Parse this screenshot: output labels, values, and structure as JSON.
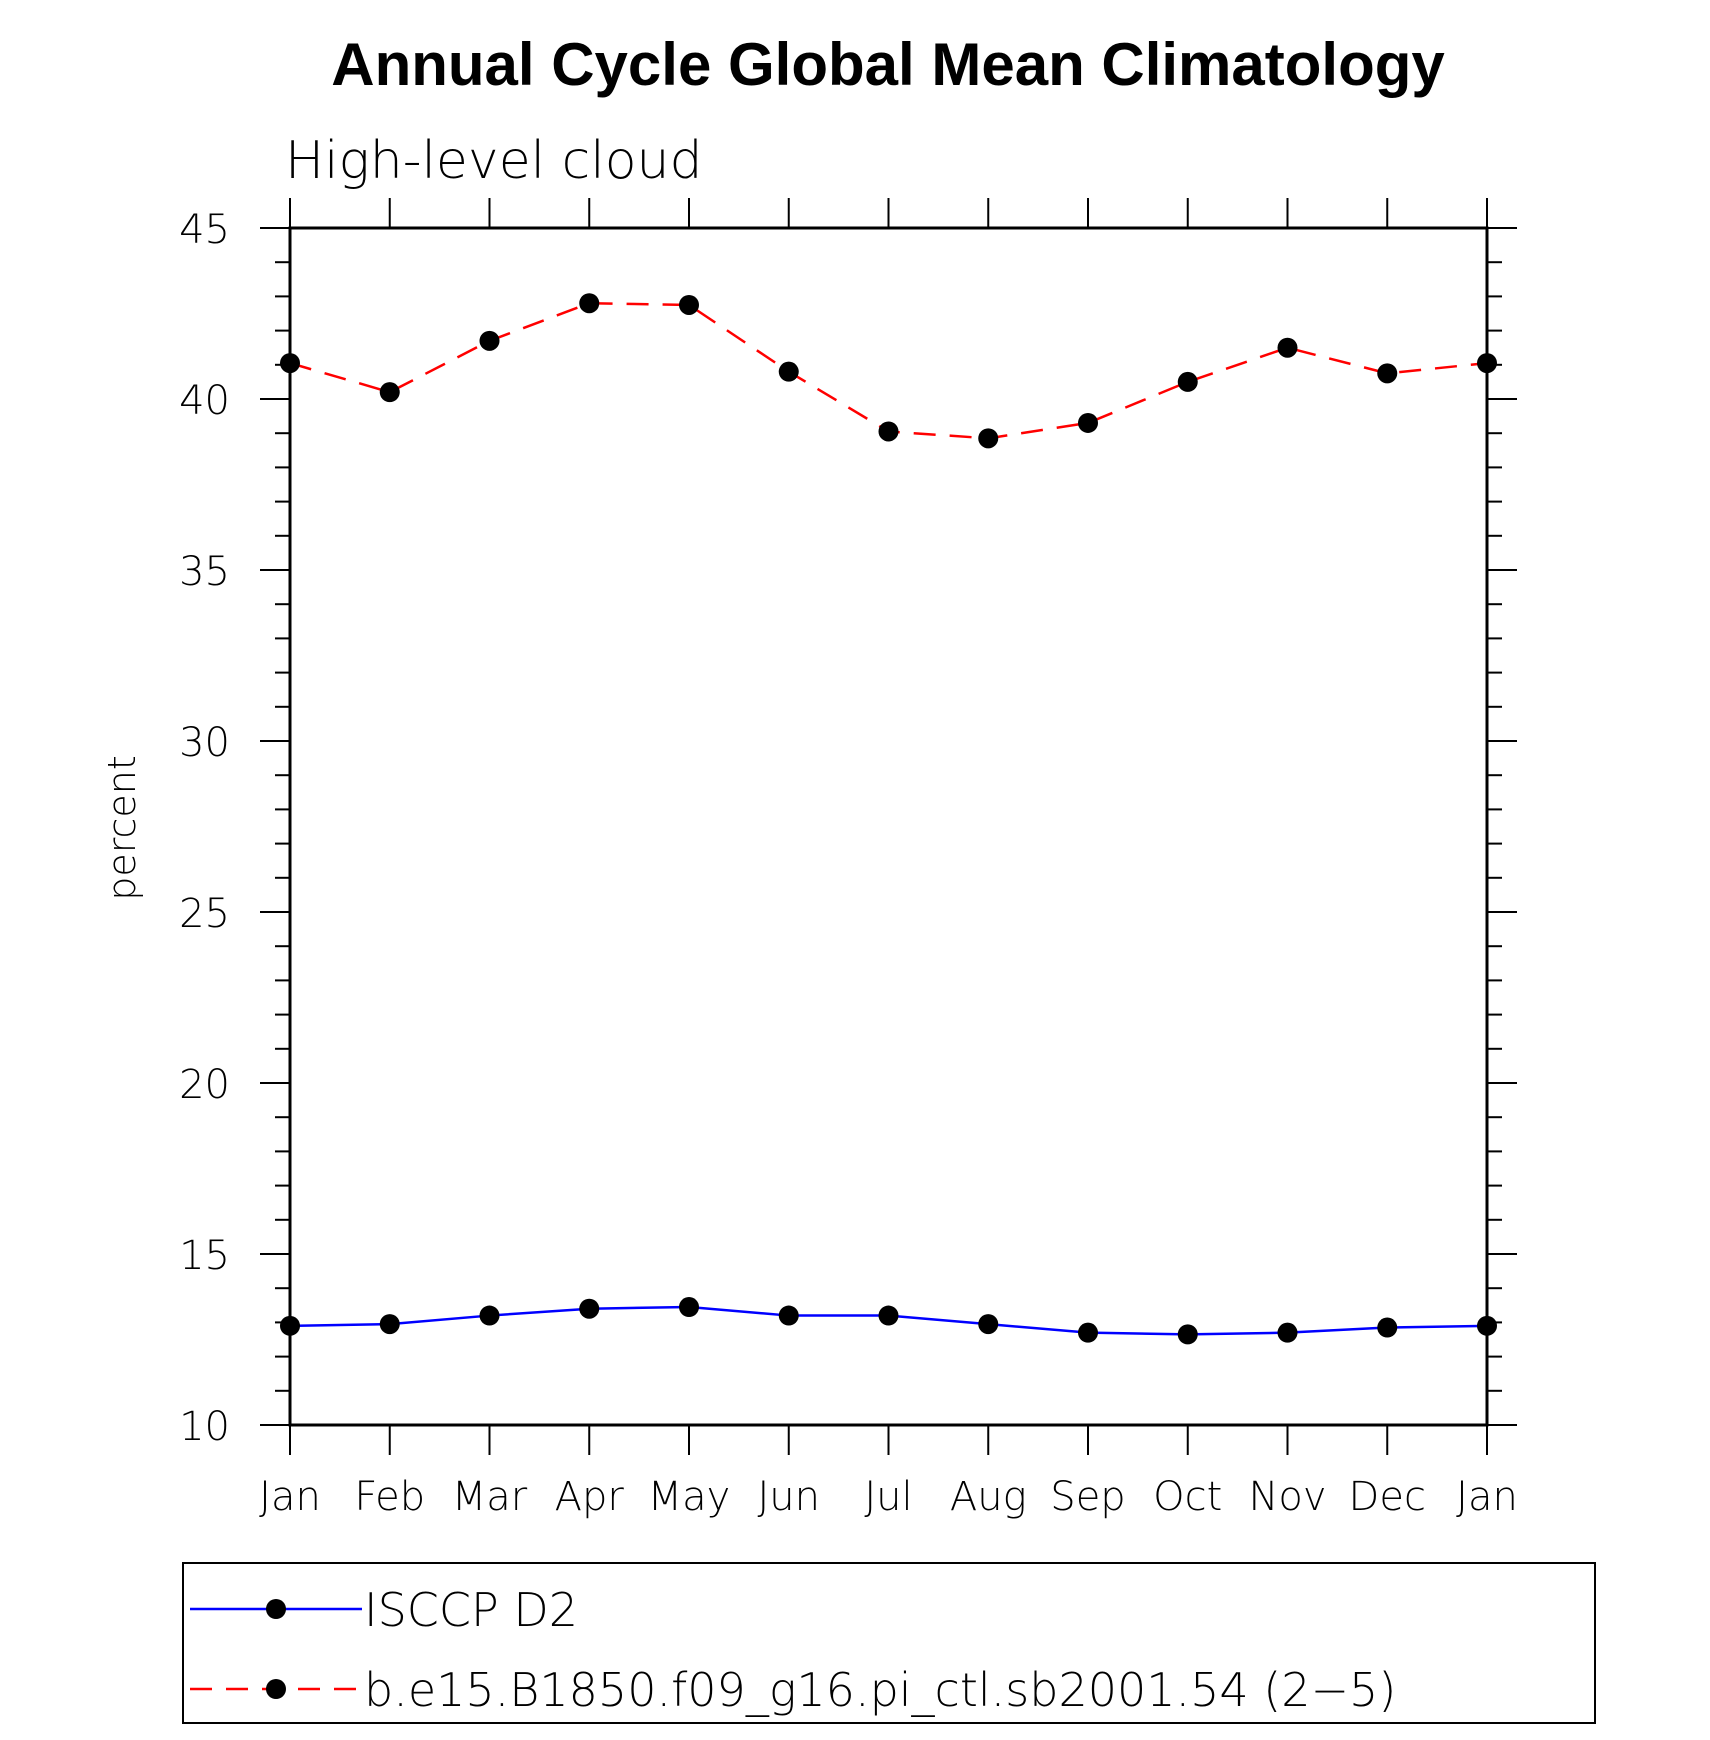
{
  "chart_data": {
    "type": "line",
    "title": "Annual Cycle Global Mean Climatology",
    "subtitle": "High-level cloud",
    "xlabel": "",
    "ylabel": "percent",
    "categories": [
      "Jan",
      "Feb",
      "Mar",
      "Apr",
      "May",
      "Jun",
      "Jul",
      "Aug",
      "Sep",
      "Oct",
      "Nov",
      "Dec",
      "Jan"
    ],
    "ylim": [
      10,
      45
    ],
    "yticks": [
      "10",
      "15",
      "20",
      "25",
      "30",
      "35",
      "40",
      "45"
    ],
    "grid": false,
    "legend_position": "bottom",
    "series": [
      {
        "name": "ISCCP D2",
        "color": "#0000ff",
        "dash": "solid",
        "marker": "filled-circle",
        "values": [
          12.9,
          12.95,
          13.2,
          13.4,
          13.45,
          13.2,
          13.2,
          12.95,
          12.7,
          12.65,
          12.7,
          12.85,
          12.9
        ]
      },
      {
        "name": "b.e15.B1850.f09_g16.pi_ctl.sb2001.54 (2−5)",
        "color": "#ff0000",
        "dash": "dashed",
        "marker": "filled-circle",
        "values": [
          41.05,
          40.2,
          41.7,
          42.8,
          42.75,
          40.8,
          39.05,
          38.85,
          39.3,
          40.5,
          41.5,
          40.75,
          41.05
        ]
      }
    ]
  }
}
